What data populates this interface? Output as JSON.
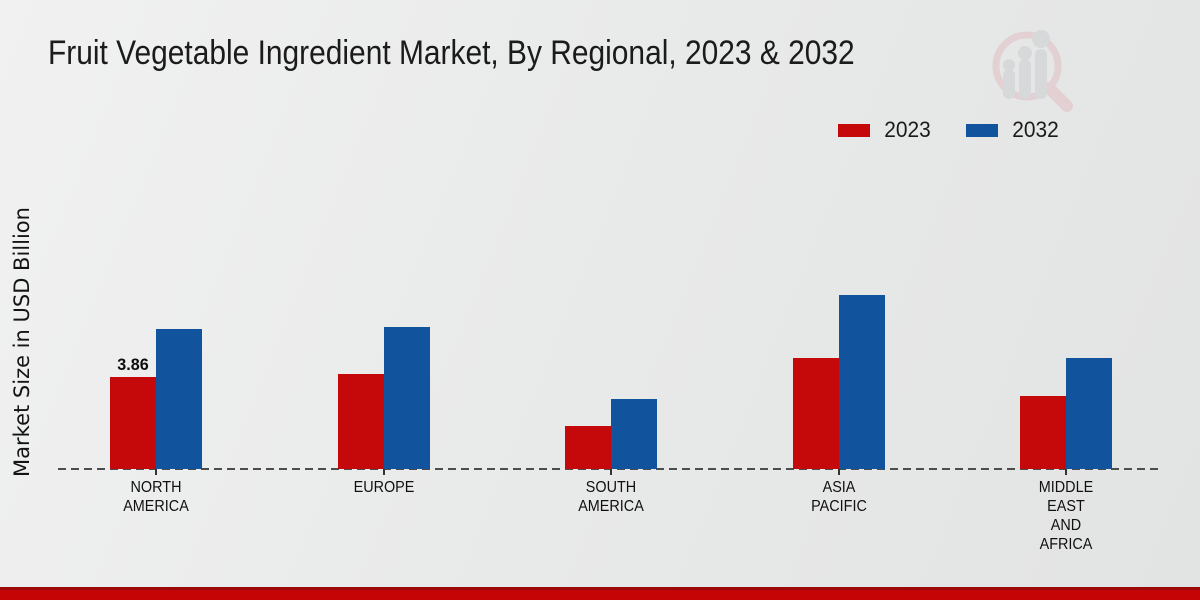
{
  "chart_data": {
    "type": "bar",
    "title": "Fruit Vegetable Ingredient Market, By Regional, 2023 & 2032",
    "ylabel": "Market Size in USD Billion",
    "xlabel": "",
    "unit": "USD Billion",
    "categories": [
      "NORTH AMERICA",
      "EUROPE",
      "SOUTH AMERICA",
      "ASIA PACIFIC",
      "MIDDLE EAST AND AFRICA"
    ],
    "category_label_lines": [
      [
        "NORTH",
        "AMERICA"
      ],
      [
        "EUROPE"
      ],
      [
        "SOUTH",
        "AMERICA"
      ],
      [
        "ASIA",
        "PACIFIC"
      ],
      [
        "MIDDLE",
        "EAST",
        "AND",
        "AFRICA"
      ]
    ],
    "series": [
      {
        "name": "2023",
        "color": "#c50809",
        "values": [
          3.86,
          3.99,
          1.8,
          4.66,
          3.06
        ]
      },
      {
        "name": "2032",
        "color": "#11549d",
        "values": [
          5.87,
          5.96,
          2.94,
          7.3,
          4.66
        ]
      }
    ],
    "annotations": [
      {
        "series_index": 0,
        "category_index": 0,
        "text": "3.86"
      }
    ],
    "ylim": [
      0,
      8
    ],
    "grid": false,
    "legend_position": "top-right",
    "baseline_style": "dashed"
  },
  "watermark_name": "magnifier-bar-chart-logo",
  "footer": {
    "accent_color": "#c50505"
  }
}
